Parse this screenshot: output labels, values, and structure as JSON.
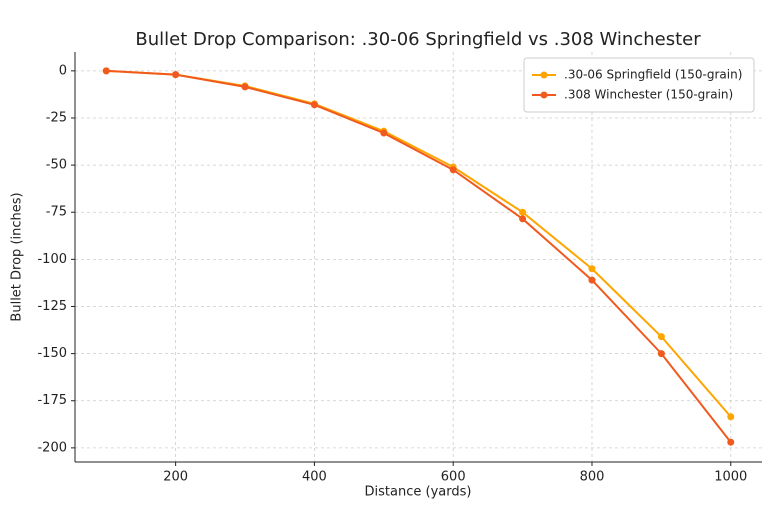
{
  "chart_data": {
    "type": "line",
    "title": "Bullet Drop Comparison: .30-06 Springfield vs .308 Winchester",
    "x_label": "Distance (yards)",
    "y_label": "Bullet Drop (inches)",
    "x": [
      100,
      200,
      300,
      400,
      500,
      600,
      700,
      800,
      900,
      1000
    ],
    "series": [
      {
        "name": ".30-06 Springfield (150-grain)",
        "color": "#ffa500",
        "values": [
          0,
          -2,
          -8,
          -17.5,
          -32,
          -51,
          -75,
          -105,
          -141,
          -183.5
        ]
      },
      {
        "name": ".308 Winchester (150-grain)",
        "color": "#f05a1e",
        "values": [
          0,
          -2,
          -8.5,
          -18,
          -33,
          -52.5,
          -78.5,
          -111,
          -150,
          -197
        ]
      }
    ],
    "xlim": [
      55,
      1045
    ],
    "ylim": [
      -207.5,
      10
    ],
    "xticks": [
      200,
      400,
      600,
      800,
      1000
    ],
    "yticks": [
      0,
      -25,
      -50,
      -75,
      -100,
      -125,
      -150,
      -175,
      -200
    ],
    "grid": true,
    "legend": "upper right"
  }
}
